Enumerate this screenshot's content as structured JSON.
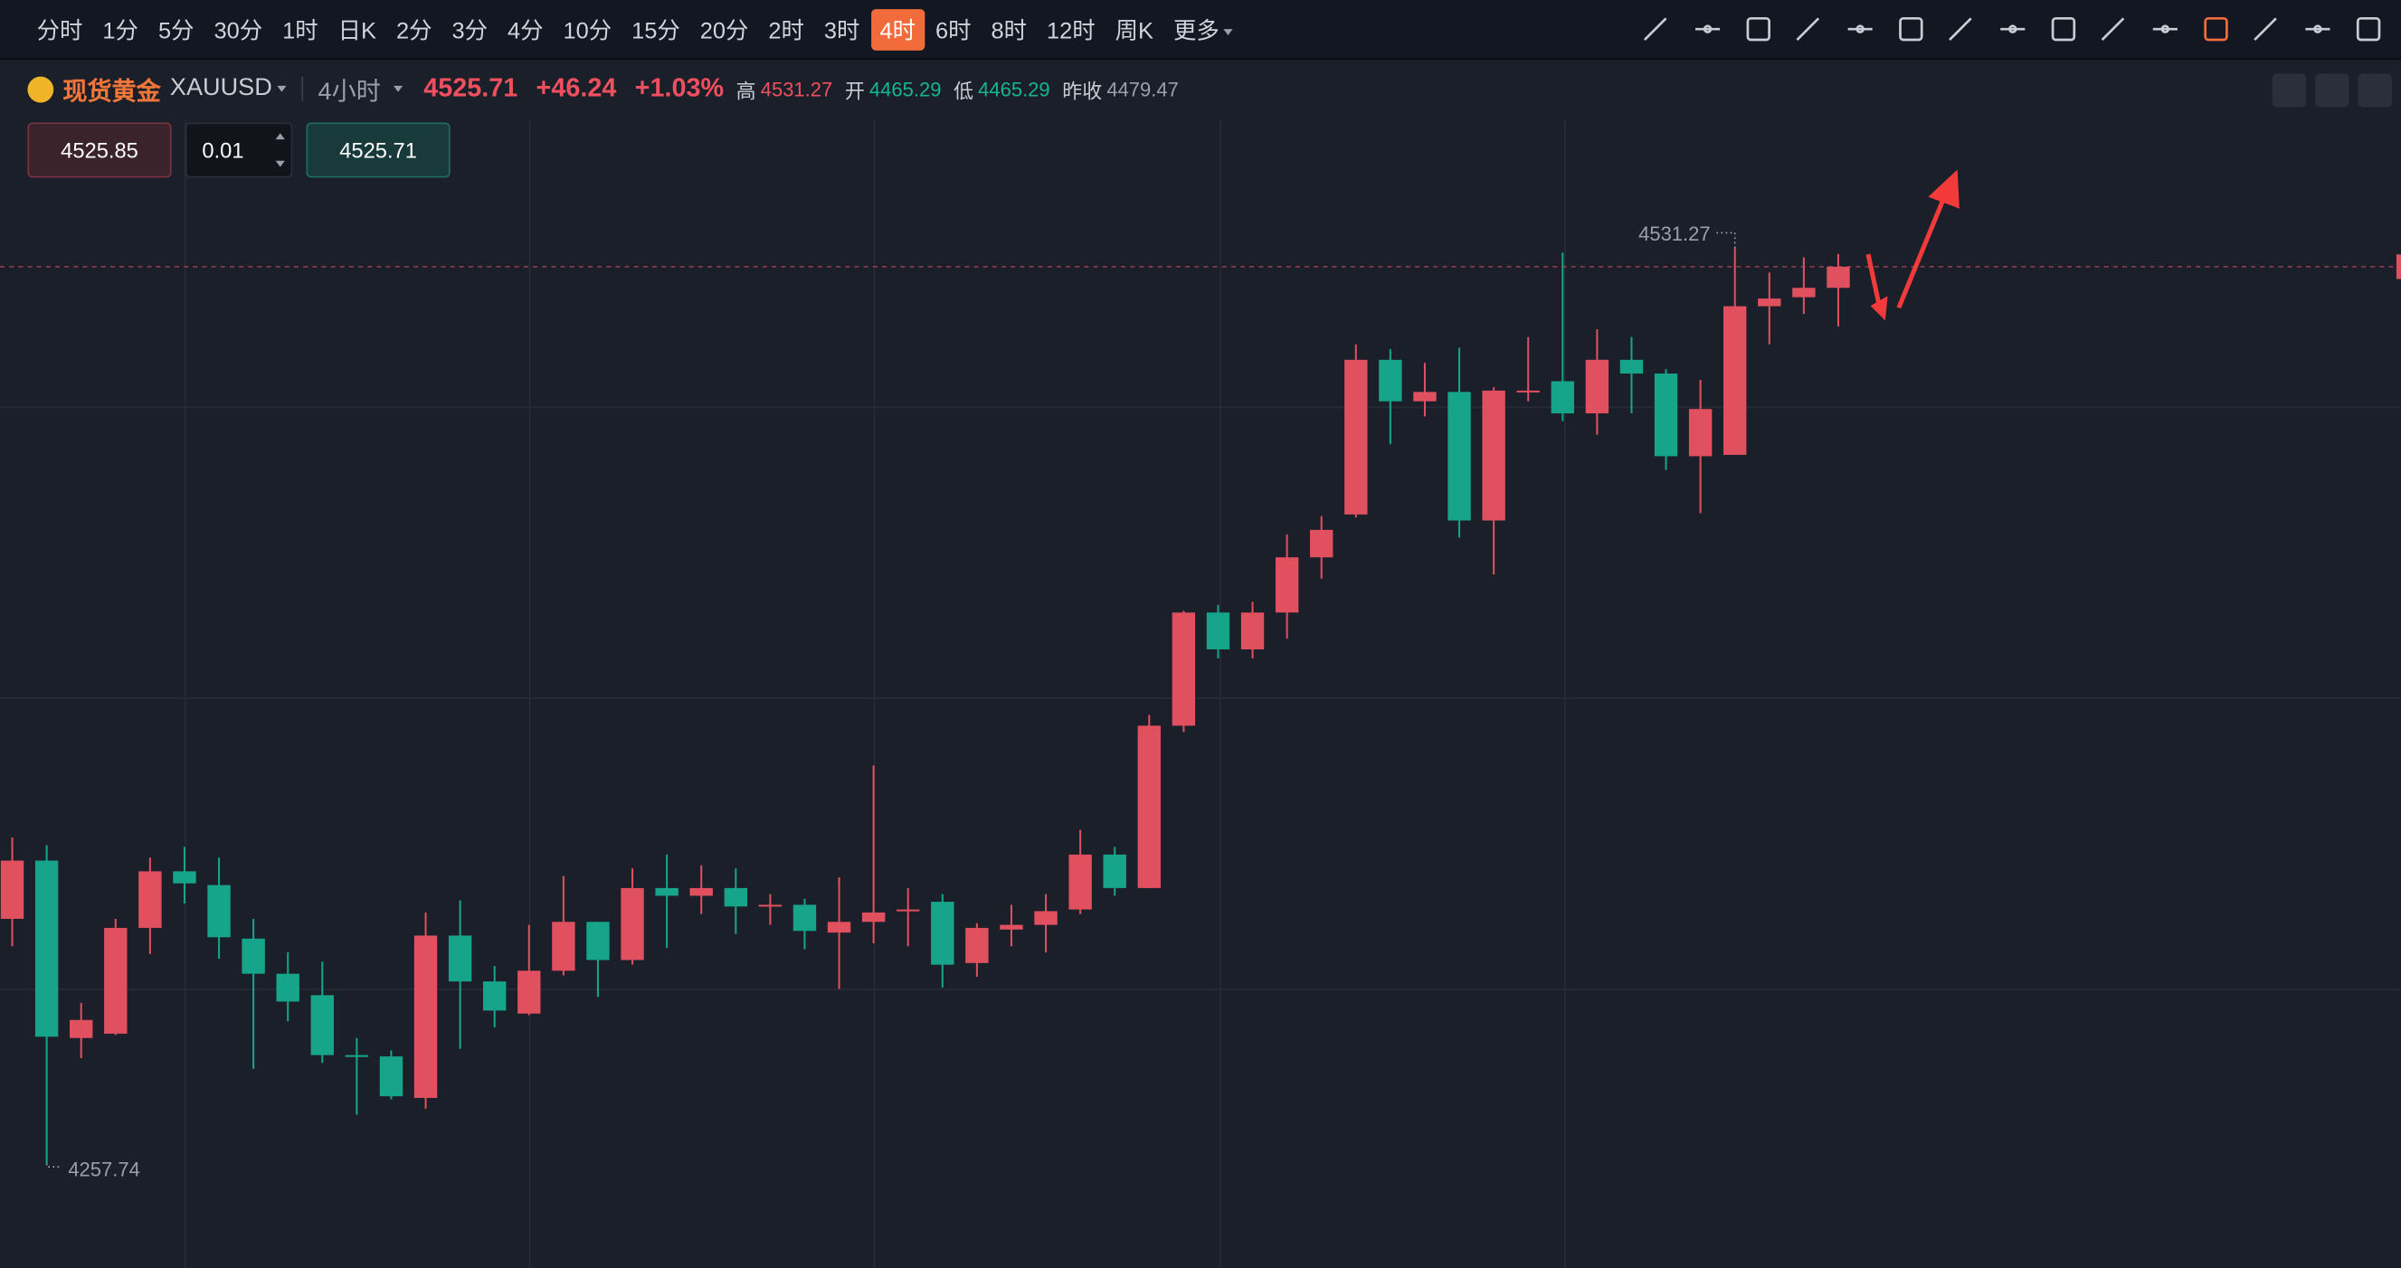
{
  "toolbar": {
    "timeframes": [
      "分时",
      "1分",
      "5分",
      "30分",
      "1时",
      "日K",
      "2分",
      "3分",
      "4分",
      "10分",
      "15分",
      "20分",
      "2时",
      "3时",
      "4时",
      "6时",
      "8时",
      "12时",
      "周K",
      "更多"
    ],
    "active": "4时"
  },
  "header": {
    "name": "现货黄金",
    "symbol": "XAUUSD",
    "interval": "4小时",
    "price": "4525.71",
    "change": "+46.24",
    "change_pct": "+1.03%",
    "high_label": "高",
    "high": "4531.27",
    "open_label": "开",
    "open": "4465.29",
    "low_label": "低",
    "low": "4465.29",
    "prev_close_label": "昨收",
    "prev_close": "4479.47"
  },
  "order": {
    "sell": "4525.85",
    "quantity": "0.01",
    "buy": "4525.71"
  },
  "chart_data": {
    "type": "candlestick",
    "up_color": "#e0505e",
    "down_color": "#16a58a",
    "ylim": [
      4226.6,
      4569.7
    ],
    "annotations": [
      "4531.27",
      "4257.74"
    ],
    "open": [
      4330.9,
      4348.3,
      4295.3,
      4296.6,
      4328.2,
      4345.1,
      4341.0,
      4325.0,
      4314.5,
      4308.1,
      4290.2,
      4289.8,
      4277.4,
      4325.9,
      4312.2,
      4302.6,
      4315.4,
      4330.0,
      4318.6,
      4340.1,
      4337.8,
      4340.1,
      4334.6,
      4335.1,
      4326.8,
      4330.0,
      4333.2,
      4336.0,
      4317.7,
      4327.7,
      4329.1,
      4333.7,
      4350.1,
      4340.1,
      4388.6,
      4422.4,
      4411.4,
      4422.4,
      4438.9,
      4451.7,
      4497.9,
      4485.5,
      4488.3,
      4449.9,
      4488.3,
      4491.5,
      4481.9,
      4497.9,
      4493.8,
      4469.1,
      4469.5,
      4513.9,
      4516.6,
      4519.4
    ],
    "high": [
      4355.2,
      4352.9,
      4305.8,
      4330.9,
      4349.2,
      4352.4,
      4349.2,
      4330.9,
      4320.9,
      4318.1,
      4295.3,
      4291.6,
      4332.8,
      4336.4,
      4316.8,
      4329.1,
      4343.7,
      4330.0,
      4346.0,
      4350.1,
      4346.9,
      4346.0,
      4338.3,
      4336.9,
      4343.3,
      4376.7,
      4340.1,
      4338.3,
      4329.6,
      4335.1,
      4338.3,
      4357.5,
      4352.4,
      4391.8,
      4422.9,
      4424.7,
      4425.6,
      4445.7,
      4451.2,
      4502.5,
      4501.1,
      4497.0,
      4501.5,
      4489.7,
      4504.7,
      4529.9,
      4507.0,
      4504.7,
      4495.1,
      4491.9,
      4531.27,
      4524.0,
      4528.5,
      4529.5
    ],
    "low": [
      4322.7,
      4257.74,
      4289.3,
      4296.2,
      4320.4,
      4335.5,
      4319.0,
      4286.1,
      4300.3,
      4287.9,
      4272.4,
      4277.0,
      4274.2,
      4292.1,
      4298.5,
      4302.1,
      4314.0,
      4307.6,
      4317.2,
      4322.2,
      4332.3,
      4326.4,
      4329.1,
      4321.8,
      4309.9,
      4323.6,
      4322.7,
      4310.4,
      4313.6,
      4322.7,
      4320.9,
      4332.3,
      4337.8,
      4340.1,
      4386.7,
      4408.7,
      4408.7,
      4414.6,
      4432.5,
      4450.8,
      4472.7,
      4481.0,
      4444.8,
      4433.8,
      4485.5,
      4479.6,
      4475.5,
      4481.9,
      4465.0,
      4452.1,
      4469.5,
      4502.5,
      4511.6,
      4507.9
    ],
    "close": [
      4348.3,
      4295.7,
      4300.7,
      4328.2,
      4345.1,
      4341.5,
      4325.4,
      4314.5,
      4306.2,
      4290.2,
      4289.8,
      4277.9,
      4325.9,
      4312.2,
      4303.5,
      4315.4,
      4330.0,
      4318.6,
      4340.1,
      4337.8,
      4340.1,
      4334.6,
      4335.1,
      4327.3,
      4330.0,
      4332.8,
      4333.7,
      4317.2,
      4328.2,
      4329.1,
      4333.2,
      4350.1,
      4340.1,
      4388.6,
      4422.4,
      4411.4,
      4422.4,
      4438.9,
      4447.1,
      4497.9,
      4485.5,
      4488.3,
      4449.9,
      4488.7,
      4488.7,
      4481.9,
      4497.9,
      4493.8,
      4469.1,
      4483.2,
      4513.9,
      4516.2,
      4519.4,
      4525.71
    ]
  }
}
